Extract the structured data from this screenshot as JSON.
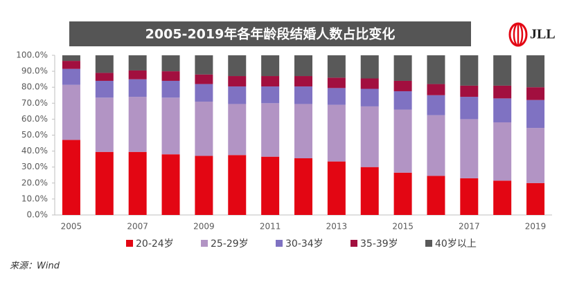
{
  "chart_data": {
    "type": "stacked-bar",
    "title": "2005-2019年各年龄段结婚人数占比变化",
    "brand": "JLL",
    "source": "来源：Wind",
    "categories": [
      "2005",
      null,
      "2007",
      null,
      "2009",
      null,
      "2011",
      null,
      "2013",
      null,
      "2015",
      null,
      "2017",
      null,
      "2019"
    ],
    "series": [
      {
        "name": "20-24岁",
        "color": "#e30613",
        "values": [
          47,
          39.5,
          39.5,
          38,
          37,
          37.5,
          36.5,
          35.5,
          33.5,
          30,
          26.5,
          24.5,
          23,
          21.5,
          20
        ]
      },
      {
        "name": "25-29岁",
        "color": "#b294c4",
        "values": [
          34.5,
          34,
          34.5,
          35.5,
          34,
          32,
          33.5,
          34,
          35.5,
          38,
          39.5,
          38,
          37,
          36.5,
          34.5
        ]
      },
      {
        "name": "30-34岁",
        "color": "#7f72c2",
        "values": [
          10,
          10.5,
          11,
          10.5,
          11,
          11,
          10.5,
          11,
          10.5,
          11,
          11.5,
          12.5,
          14,
          15,
          17.5
        ]
      },
      {
        "name": "35-39岁",
        "color": "#a20f3f",
        "values": [
          5,
          5,
          5.5,
          6,
          6,
          6.5,
          6.5,
          6.5,
          6.5,
          6.5,
          6.5,
          7,
          7,
          8,
          8
        ]
      },
      {
        "name": "40岁以上",
        "color": "#595959",
        "values": [
          3.5,
          11,
          9.5,
          10,
          12,
          13,
          13,
          13,
          14,
          14.5,
          16,
          18,
          19,
          19,
          20
        ]
      }
    ],
    "ylim": [
      0,
      100
    ],
    "yticks": [
      {
        "value": 0,
        "label": "0.0%"
      },
      {
        "value": 10,
        "label": "10.0%"
      },
      {
        "value": 20,
        "label": "20.0%"
      },
      {
        "value": 30,
        "label": "30.0%"
      },
      {
        "value": 40,
        "label": "40.0%"
      },
      {
        "value": 50,
        "label": "50.0%"
      },
      {
        "value": 60,
        "label": "60.0%"
      },
      {
        "value": 70,
        "label": "70.0%"
      },
      {
        "value": 80,
        "label": "80.0%"
      },
      {
        "value": 90,
        "label": "90.0%"
      },
      {
        "value": 100,
        "label": "100.0%"
      }
    ]
  }
}
